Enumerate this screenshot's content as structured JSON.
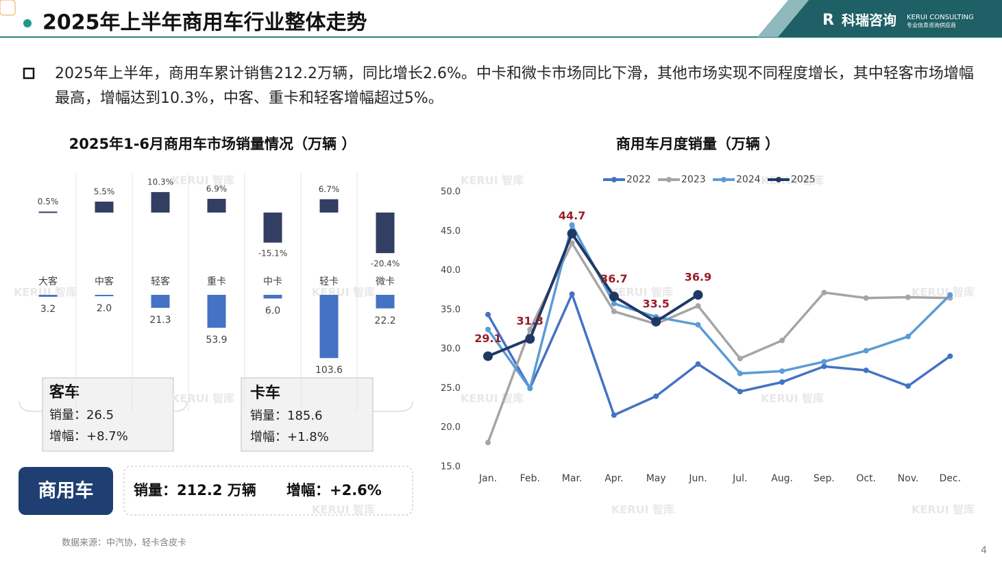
{
  "header": {
    "title": "2025年上半年商用车行业整体走势",
    "logo_cn": "科瑞咨询",
    "logo_en": "KERUI CONSULTING",
    "logo_sub": "专业信息咨询供应商"
  },
  "summary": "2025年上半年，商用车累计销售212.2万辆，同比增长2.6%。中卡和微卡市场同比下滑，其他市场实现不同程度增长，其中轻客市场增幅最高，增幅达到10.3%，中客、重卡和轻客增幅超过5%。",
  "watermark": "KERUI 智库",
  "chart_data": [
    {
      "type": "diverging-bar",
      "title": "2025年1-6月商用车市场销量情况（万辆 ）",
      "categories": [
        "大客",
        "中客",
        "轻客",
        "重卡",
        "中卡",
        "轻卡",
        "微卡"
      ],
      "series": [
        {
          "color": "#323e62",
          "values": [
            0.5,
            5.5,
            10.3,
            6.9,
            -15.1,
            6.7,
            -20.4
          ],
          "value_labels": [
            "0.5%",
            "5.5%",
            "10.3%",
            "6.9%",
            "-15.1%",
            "6.7%",
            "-20.4%"
          ]
        },
        {
          "color": "#4472c4",
          "values": [
            3.2,
            2.0,
            21.3,
            53.9,
            6.0,
            103.6,
            22.2
          ],
          "value_labels": [
            "3.2",
            "2.0",
            "21.3",
            "53.9",
            "6.0",
            "103.6",
            "22.2"
          ]
        }
      ]
    },
    {
      "type": "line",
      "title": "商用车月度销量（万辆 ）",
      "categories": [
        "Jan.",
        "Feb.",
        "Mar.",
        "Apr.",
        "May",
        "Jun.",
        "Jul.",
        "Aug.",
        "Sep.",
        "Oct.",
        "Nov.",
        "Dec."
      ],
      "ylim": [
        15,
        50
      ],
      "yticks": [
        {
          "value": 15,
          "label": "15.0"
        },
        {
          "value": 20,
          "label": "20.0"
        },
        {
          "value": 25,
          "label": "25.0"
        },
        {
          "value": 30,
          "label": "30.0"
        },
        {
          "value": 35,
          "label": "35.0"
        },
        {
          "value": 40,
          "label": "40.0"
        },
        {
          "value": 45,
          "label": "45.0"
        },
        {
          "value": 50,
          "label": "50.0"
        }
      ],
      "grid": false,
      "legend": "top",
      "label_color": "#9b1c24",
      "series": [
        {
          "name": "2022",
          "color": "#4472c4",
          "values": [
            34.4,
            25.0,
            37.0,
            21.6,
            24.0,
            28.1,
            24.6,
            25.8,
            27.8,
            27.3,
            25.3,
            29.1
          ]
        },
        {
          "name": "2023",
          "color": "#a5a5a5",
          "values": [
            18.1,
            32.5,
            43.5,
            34.8,
            33.2,
            35.5,
            28.8,
            31.1,
            37.2,
            36.5,
            36.6,
            36.5
          ]
        },
        {
          "name": "2024",
          "color": "#5b9bd5",
          "values": [
            32.5,
            25.0,
            45.8,
            35.8,
            34.1,
            33.1,
            26.9,
            27.2,
            28.4,
            29.8,
            31.6,
            36.9
          ]
        },
        {
          "name": "2025",
          "color": "#203864",
          "data_labels": true,
          "values": [
            29.1,
            31.3,
            44.7,
            36.7,
            33.5,
            36.9,
            null,
            null,
            null,
            null,
            null,
            null
          ]
        }
      ]
    }
  ],
  "passenger_box": {
    "title": "客车",
    "sales": "销量：26.5",
    "growth": "增幅：+8.7%"
  },
  "truck_box": {
    "title": "卡车",
    "sales": "销量：185.6",
    "growth": "增幅：+1.8%"
  },
  "total": {
    "title": "商用车",
    "sales": "销量：212.2 万辆",
    "growth": "增幅：+2.6%"
  },
  "source": "数据来源：中汽协，轻卡含皮卡",
  "page_number": "4"
}
